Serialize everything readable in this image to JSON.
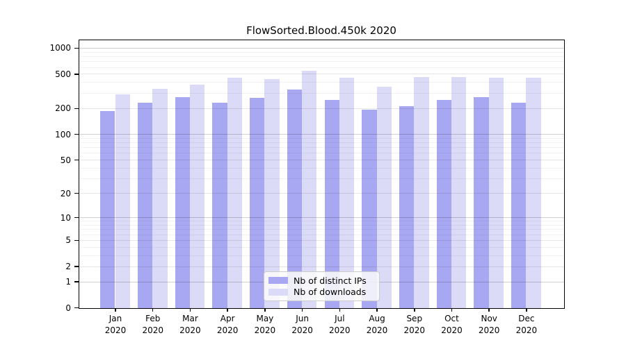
{
  "title": "FlowSorted.Blood.450k 2020",
  "chart_data": {
    "type": "bar",
    "title": "FlowSorted.Blood.450k 2020",
    "categories": [
      "Jan",
      "Feb",
      "Mar",
      "Apr",
      "May",
      "Jun",
      "Jul",
      "Aug",
      "Sep",
      "Oct",
      "Nov",
      "Dec"
    ],
    "year": "2020",
    "series": [
      {
        "name": "Nb of distinct IPs",
        "color": "#a8a8f2",
        "values": [
          187,
          236,
          271,
          236,
          268,
          333,
          252,
          196,
          215,
          255,
          273,
          234
        ]
      },
      {
        "name": "Nb of downloads",
        "color": "#dbdbf8",
        "values": [
          295,
          338,
          378,
          459,
          440,
          551,
          459,
          358,
          467,
          467,
          459,
          462
        ]
      }
    ],
    "xlabel": "",
    "ylabel": "",
    "y_ticks": [
      0,
      1,
      2,
      5,
      10,
      20,
      50,
      100,
      200,
      500,
      1000
    ],
    "y_scale": "log10(value+1)",
    "ylim": [
      0,
      1220
    ],
    "grid": true,
    "legend_position": "bottom-center"
  }
}
